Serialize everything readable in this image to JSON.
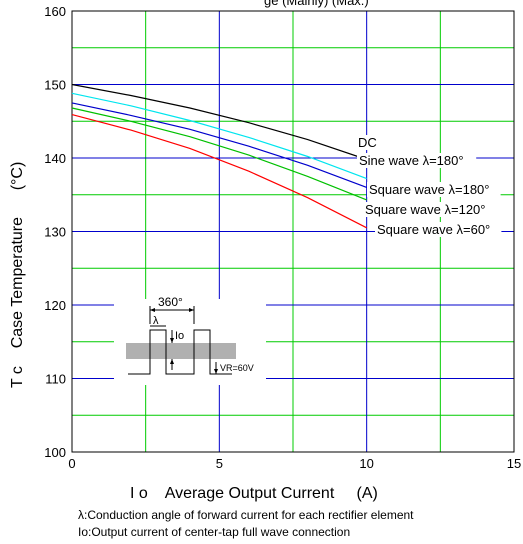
{
  "chart_data": {
    "type": "line",
    "title": "",
    "title_partial": "ge (Mainly) (Max.)",
    "xlabel": "I o    Average Output Current     (A)",
    "ylabel": "T c    Case Temperature      (°C)",
    "xlim": [
      0,
      15
    ],
    "ylim": [
      100,
      160
    ],
    "xticks": [
      "0",
      "5",
      "10",
      "15"
    ],
    "yticks": [
      "100",
      "110",
      "120",
      "130",
      "140",
      "150",
      "160"
    ],
    "grid": true,
    "series": [
      {
        "name": "DC",
        "color": "#000000",
        "x": [
          0,
          2,
          4,
          6,
          8,
          10
        ],
        "y": [
          150,
          148.5,
          146.8,
          144.8,
          142.5,
          139.8
        ]
      },
      {
        "name": "Sine wave λ=180°",
        "color": "#00e5ee",
        "x": [
          0,
          2,
          4,
          6,
          8,
          10
        ],
        "y": [
          148.8,
          147.1,
          145.1,
          142.8,
          140.2,
          137.2
        ]
      },
      {
        "name": "Square wave λ=180°",
        "color": "#0000cc",
        "x": [
          0,
          2,
          4,
          6,
          8,
          10
        ],
        "y": [
          147.5,
          145.8,
          143.9,
          141.6,
          139,
          136
        ]
      },
      {
        "name": "Square wave λ=120°",
        "color": "#00c000",
        "x": [
          0,
          2,
          4,
          6,
          8,
          10
        ],
        "y": [
          146.8,
          145,
          142.9,
          140.4,
          137.5,
          134.3
        ]
      },
      {
        "name": "Square wave λ=60°",
        "color": "#ff0000",
        "x": [
          0,
          2,
          4,
          6,
          8,
          10
        ],
        "y": [
          145.9,
          143.8,
          141.3,
          138.2,
          134.6,
          130.5
        ]
      }
    ],
    "inset": {
      "period_label": "360°",
      "angle_label": "λ",
      "current_label": "Io",
      "voltage_label": "VR=60V"
    },
    "footnotes": [
      "λ:Conduction angle of forward current for each rectifier element",
      "Io:Output current of center-tap full wave connection"
    ]
  }
}
